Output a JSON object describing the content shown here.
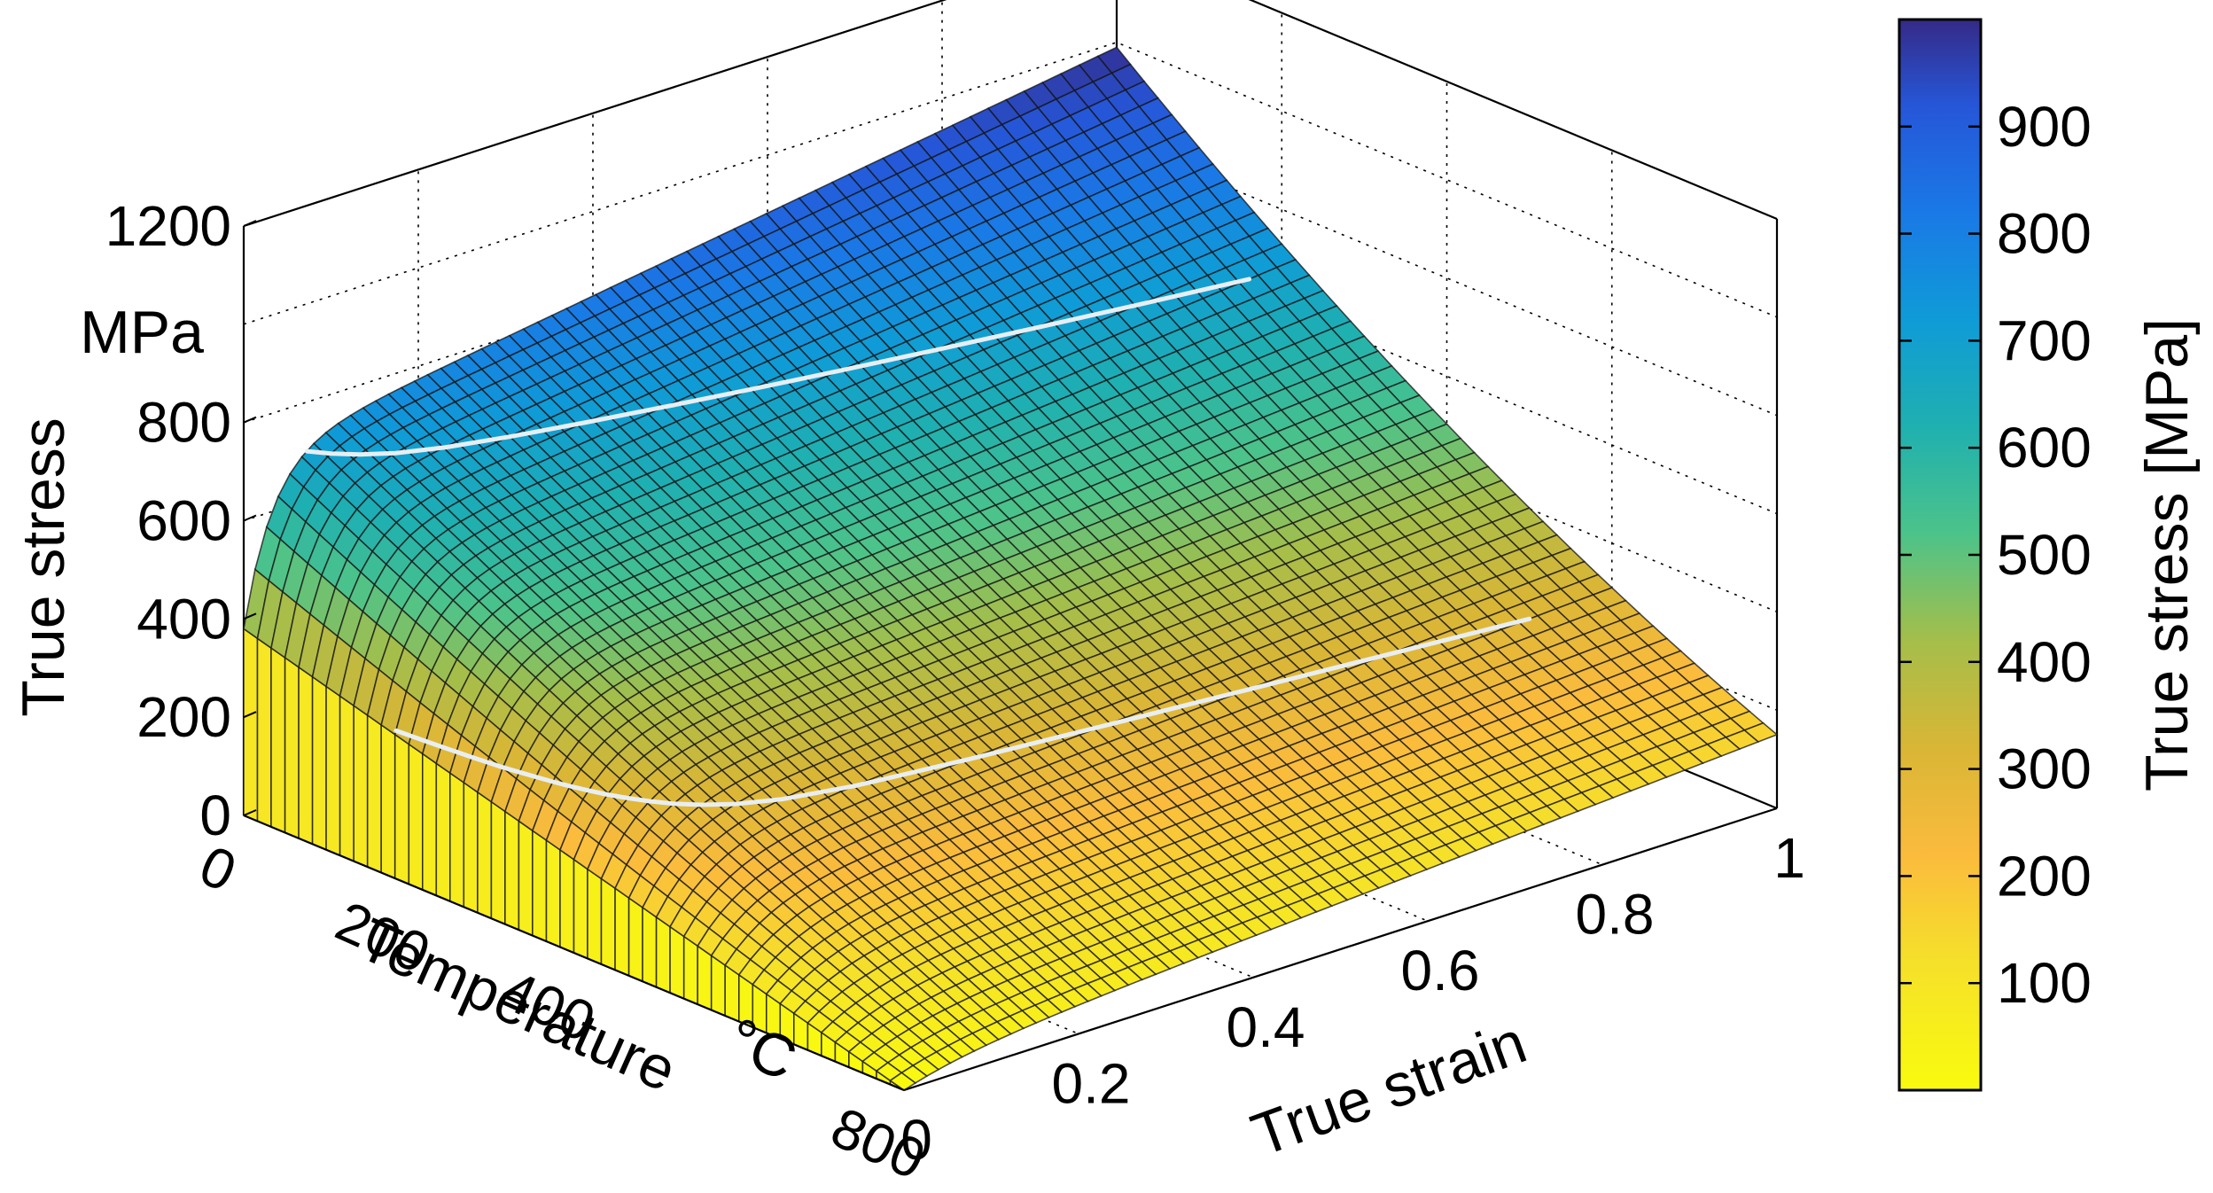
{
  "chart_data": {
    "type": "surface",
    "title": "",
    "z_axis": {
      "label_line1": "True stress",
      "label_line2": "MPa",
      "ticks": [
        "0",
        "200",
        "400",
        "600",
        "800",
        "1200"
      ],
      "range": [
        0,
        1200
      ]
    },
    "temperature_axis": {
      "label": "Temperature",
      "unit": "°C",
      "ticks": [
        "0",
        "200",
        "400",
        "800"
      ],
      "range": [
        0,
        800
      ]
    },
    "strain_axis": {
      "label": "True strain",
      "ticks": [
        "0",
        "0.2",
        "0.4",
        "0.6",
        "0.8",
        "1"
      ],
      "range": [
        0,
        1
      ]
    },
    "colorbar": {
      "label": "True stress [MPa]",
      "ticks": [
        "100",
        "200",
        "300",
        "400",
        "500",
        "600",
        "700",
        "800",
        "900"
      ],
      "range": [
        0,
        1000
      ],
      "colormap": "parula-reversed"
    },
    "surface_samples": [
      {
        "temperature": 0,
        "strain": 0,
        "stress": 380
      },
      {
        "temperature": 0,
        "strain": 0.05,
        "stress": 720
      },
      {
        "temperature": 0,
        "strain": 1,
        "stress": 990
      },
      {
        "temperature": 800,
        "strain": 0,
        "stress": 0
      },
      {
        "temperature": 800,
        "strain": 1,
        "stress": 150
      }
    ],
    "contours": [
      {
        "stress": 700
      },
      {
        "stress": 300
      }
    ],
    "grid": true
  }
}
